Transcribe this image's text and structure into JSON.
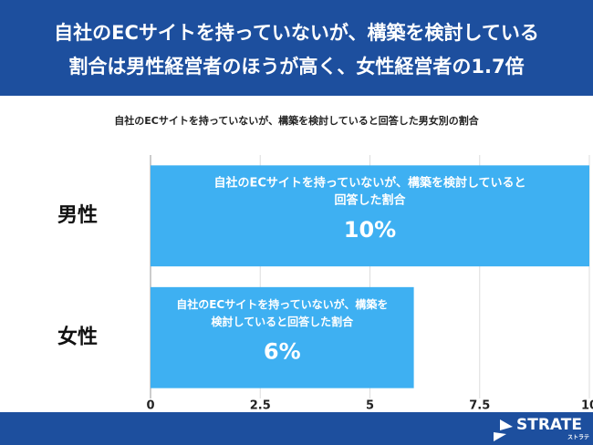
{
  "header": {
    "title_lines": [
      "自社のECサイトを持っていないが、構築を検討している",
      "割合は男性経営者のほうが高く、女性経営者の1.7倍"
    ]
  },
  "chart_data": {
    "type": "bar",
    "orientation": "horizontal",
    "subtitle": "自社のECサイトを持っていないが、構築を検討していると回答した男女別の割合",
    "categories": [
      "男性",
      "女性"
    ],
    "values": [
      10,
      6
    ],
    "value_labels": [
      "10%",
      "6%"
    ],
    "bar_notes": [
      [
        "自社のECサイトを持っていないが、構築を検討していると",
        "回答した割合"
      ],
      [
        "自社のECサイトを持っていないが、構築を",
        "検討していると回答した割合"
      ]
    ],
    "color": "#3eb0f2",
    "xlim": [
      0,
      10
    ],
    "xticks": [
      0,
      2.5,
      5,
      7.5,
      10
    ],
    "grid": true
  },
  "footer": {
    "brand": "STRATE",
    "brand_kana": "ストラテ"
  }
}
